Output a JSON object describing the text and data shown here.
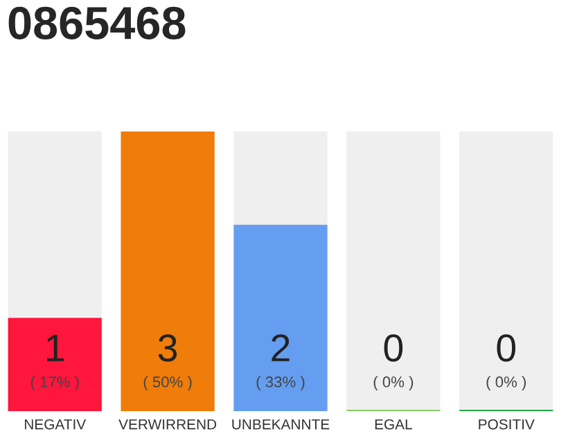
{
  "chart_data": {
    "type": "bar",
    "title": "0865468",
    "categories": [
      "NEGATIV",
      "VERWIRREND",
      "UNBEKANNTE",
      "EGAL",
      "POSITIV"
    ],
    "values": [
      1,
      3,
      2,
      0,
      0
    ],
    "colors": [
      "#ff163c",
      "#f07c0a",
      "#659df0",
      "#88cc66",
      "#22aa44"
    ],
    "value_labels": [
      "1\n( 17% )",
      "3\n( 50% )",
      "2\n( 33% )",
      "0\n( 0% )",
      "0\n( 0% )"
    ],
    "grid": false,
    "legend": false
  }
}
